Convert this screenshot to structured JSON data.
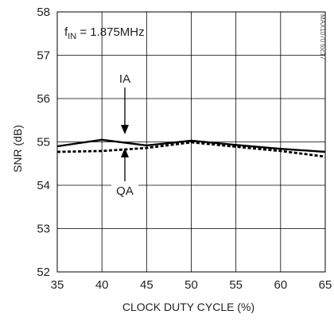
{
  "chart_data": {
    "type": "line",
    "xlabel": "CLOCK DUTY CYCLE (%)",
    "ylabel": "SNR (dB)",
    "xlim": [
      35,
      65
    ],
    "ylim": [
      52,
      58
    ],
    "x_ticks": [
      35,
      40,
      45,
      50,
      55,
      60,
      65
    ],
    "y_ticks": [
      52,
      53,
      54,
      55,
      56,
      57,
      58
    ],
    "grid": true,
    "condition": {
      "prefix": "f",
      "subscript": "IN",
      "suffix": " = 1.875MHz"
    },
    "watermark": "MAX1070 toc17",
    "series": [
      {
        "name": "IA",
        "style": "solid",
        "color": "#000000",
        "x": [
          35,
          40,
          45,
          50,
          55,
          60,
          65
        ],
        "y": [
          54.9,
          55.05,
          54.92,
          55.03,
          54.93,
          54.84,
          54.77
        ]
      },
      {
        "name": "QA",
        "style": "dashed",
        "color": "#000000",
        "x": [
          35,
          40,
          45,
          50,
          55,
          60,
          65
        ],
        "y": [
          54.77,
          54.79,
          54.86,
          54.99,
          54.89,
          54.79,
          54.66
        ]
      }
    ]
  }
}
